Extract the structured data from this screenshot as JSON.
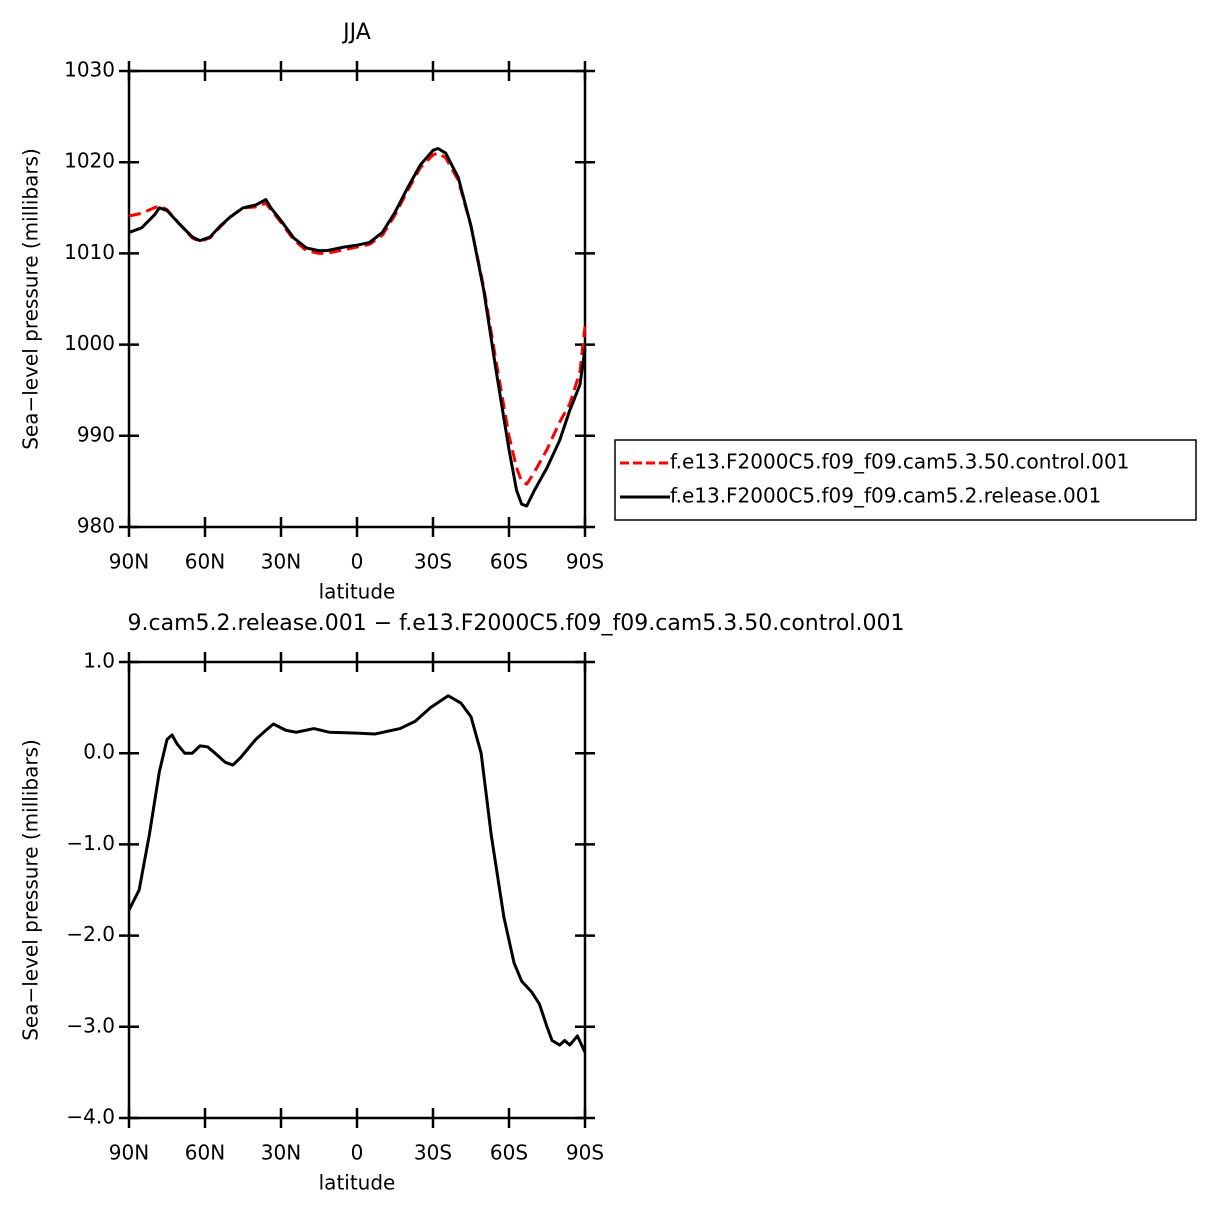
{
  "chart_data": [
    {
      "type": "line",
      "title": "JJA",
      "xlabel": "latitude",
      "ylabel": "Sea−level pressure (millibars)",
      "xlim": [
        90,
        -90
      ],
      "ylim": [
        980,
        1030
      ],
      "xticks": [
        {
          "value": 90,
          "label": "90N"
        },
        {
          "value": 60,
          "label": "60N"
        },
        {
          "value": 30,
          "label": "30N"
        },
        0,
        {
          "value": -30,
          "label": "30S"
        },
        {
          "value": -60,
          "label": "60S"
        },
        {
          "value": -90,
          "label": "90S"
        }
      ],
      "yticks": [
        980,
        990,
        1000,
        1010,
        1020,
        1030
      ],
      "legend": "right",
      "x": [
        90,
        85,
        80,
        78,
        75,
        70,
        65,
        62,
        58,
        54,
        50,
        45,
        40,
        36,
        34,
        30,
        25,
        20,
        15,
        12,
        5,
        0,
        -5,
        -10,
        -15,
        -20,
        -25,
        -30,
        -32,
        -35,
        -40,
        -45,
        -50,
        -55,
        -60,
        -63,
        -65,
        -67,
        -70,
        -75,
        -80,
        -84,
        -88,
        -90
      ],
      "series": [
        {
          "name": "f.e13.F2000C5.f09_f09.cam5.3.50.control.001",
          "color": "#ff0000",
          "dashed": true,
          "values": [
            1014.1,
            1014.4,
            1015,
            1015.2,
            1014.8,
            1013.2,
            1011.7,
            1011.3,
            1011.7,
            1012.9,
            1014,
            1015,
            1015.1,
            1015.5,
            1014.8,
            1013.4,
            1011.5,
            1010.3,
            1010,
            1010,
            1010.4,
            1010.7,
            1011,
            1012,
            1014.2,
            1016.9,
            1019.4,
            1020.8,
            1021,
            1020.5,
            1018,
            1013,
            1006.3,
            998,
            990,
            986.5,
            985,
            984.7,
            986,
            988.5,
            991.5,
            993.5,
            997,
            1002
          ]
        },
        {
          "name": "f.e13.F2000C5.f09_f09.cam5.2.release.001",
          "color": "#000000",
          "dashed": false,
          "values": [
            1012.3,
            1012.8,
            1014.2,
            1015,
            1014.7,
            1013.2,
            1011.8,
            1011.4,
            1011.8,
            1013,
            1014,
            1015,
            1015.3,
            1015.9,
            1015,
            1013.6,
            1011.7,
            1010.6,
            1010.3,
            1010.3,
            1010.7,
            1010.9,
            1011.2,
            1012.3,
            1014.5,
            1017.2,
            1019.7,
            1021.3,
            1021.5,
            1021,
            1018.3,
            1013,
            1006,
            997,
            988.5,
            984,
            982.5,
            982.3,
            984,
            986.5,
            989.5,
            992.8,
            995.6,
            999.5
          ]
        }
      ]
    },
    {
      "type": "line",
      "title": "9.cam5.2.release.001 − f.e13.F2000C5.f09_f09.cam5.3.50.control.001",
      "xlabel": "latitude",
      "ylabel": "Sea−level pressure (millibars)",
      "xlim": [
        90,
        -90
      ],
      "ylim": [
        -4,
        1
      ],
      "xticks": [
        {
          "value": 90,
          "label": "90N"
        },
        {
          "value": 60,
          "label": "60N"
        },
        {
          "value": 30,
          "label": "30N"
        },
        0,
        {
          "value": -30,
          "label": "30S"
        },
        {
          "value": -60,
          "label": "60S"
        },
        {
          "value": -90,
          "label": "90S"
        }
      ],
      "yticks": [
        {
          "value": -4,
          "label": "−4.0"
        },
        {
          "value": -3,
          "label": "−3.0"
        },
        {
          "value": -2,
          "label": "−2.0"
        },
        {
          "value": -1,
          "label": "−1.0"
        },
        {
          "value": 0,
          "label": "0.0"
        },
        {
          "value": 1,
          "label": "1.0"
        }
      ],
      "x": [
        90,
        86,
        82,
        78,
        75,
        73,
        71,
        68,
        65,
        62,
        59,
        56,
        52,
        49,
        46,
        40,
        36,
        33,
        28,
        24,
        17,
        11,
        0,
        -7,
        -17,
        -23,
        -29,
        -36,
        -41,
        -45,
        -49,
        -53,
        -58,
        -62,
        -65,
        -69,
        -72,
        -75,
        -77,
        -80,
        -82,
        -84,
        -87,
        -90
      ],
      "series": [
        {
          "color": "#000000",
          "dashed": false,
          "values": [
            -1.72,
            -1.5,
            -0.9,
            -0.2,
            0.15,
            0.2,
            0.1,
            0.0,
            0.0,
            0.08,
            0.07,
            0.0,
            -0.1,
            -0.13,
            -0.05,
            0.15,
            0.25,
            0.32,
            0.25,
            0.23,
            0.27,
            0.23,
            0.22,
            0.21,
            0.27,
            0.35,
            0.5,
            0.63,
            0.55,
            0.4,
            0.0,
            -0.9,
            -1.8,
            -2.3,
            -2.5,
            -2.62,
            -2.75,
            -3.0,
            -3.15,
            -3.2,
            -3.15,
            -3.2,
            -3.1,
            -3.28
          ]
        }
      ]
    }
  ]
}
